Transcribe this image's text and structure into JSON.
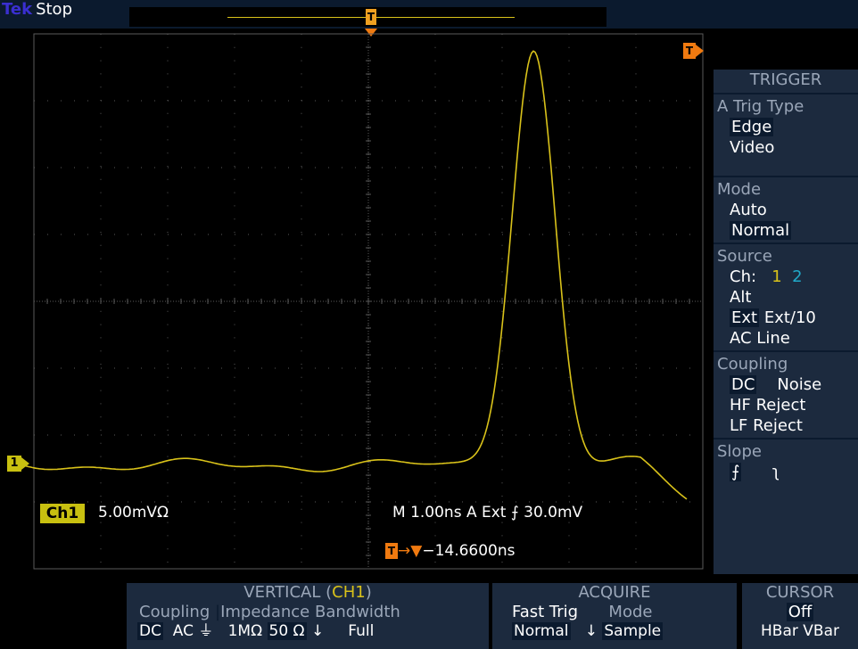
{
  "topbar": {
    "brand": "Tek",
    "state": "Stop",
    "trigger_pos_glyph": "T"
  },
  "channel": {
    "badge": "Ch1",
    "scale": "5.00mVΩ",
    "ground_marker": "1"
  },
  "timebase": {
    "readout": "M 1.00ns  A   Ext  ⨍  30.0mV"
  },
  "trigger_marker": {
    "glyph": "T"
  },
  "trigger_delay": {
    "arrow": "→▼",
    "value": "−14.6600ns"
  },
  "colors": {
    "trace": "#d9c21a",
    "trigger": "#f07a10",
    "menu_bg": "#1c2a3e",
    "grid": "#5a5a5a"
  },
  "menu": {
    "title": "TRIGGER",
    "trig_type": {
      "heading": "A Trig Type",
      "options": [
        "Edge",
        "Video"
      ],
      "selected": "Edge"
    },
    "mode": {
      "heading": "Mode",
      "options": [
        "Auto",
        "Normal"
      ],
      "selected": "Normal"
    },
    "source": {
      "heading": "Source",
      "ch_label": "Ch:",
      "ch1": "1",
      "ch2": "2",
      "alt": "Alt",
      "ext": "Ext",
      "ext10": "Ext/10",
      "acline": "AC Line",
      "selected": "Ext"
    },
    "coupling": {
      "heading": "Coupling",
      "dc": "DC",
      "noise": "Noise",
      "hf": "HF Reject",
      "lf": "LF Reject",
      "selected": "DC"
    },
    "slope": {
      "heading": "Slope",
      "rise": "⨍",
      "fall": "ʅ"
    }
  },
  "bottom": {
    "vertical": {
      "title": "VERTICAL (",
      "title_ch": "CH1",
      "title_end": ")",
      "coupling": "Coupling",
      "impedance": "Impedance",
      "bandwidth": "Bandwidth",
      "dc": "DC",
      "ac": "AC",
      "gnd": "⏚",
      "imp1": "1MΩ",
      "imp2": "50 Ω",
      "bw_arrow": "↓",
      "bw": "Full"
    },
    "acquire": {
      "title": "ACQUIRE",
      "fast_trig": "Fast Trig",
      "fast_trig_val": "Normal",
      "mode": "Mode",
      "mode_arrow": "↓",
      "mode_val": "Sample"
    },
    "cursor": {
      "title": "CURSOR",
      "state": "Off",
      "options": "HBar VBar"
    }
  }
}
